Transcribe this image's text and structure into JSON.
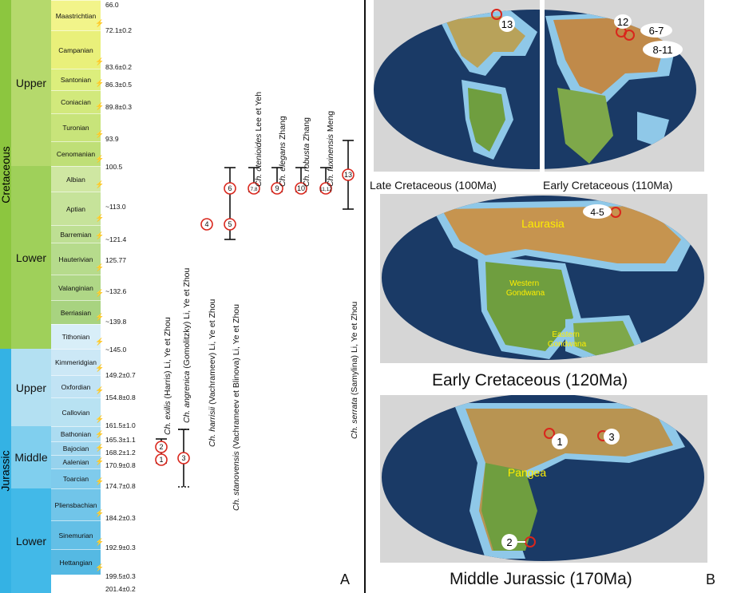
{
  "periods": [
    {
      "name": "Cretaceous",
      "color": "#8cc63f"
    },
    {
      "name": "Jurassic",
      "color": "#34b2e4"
    }
  ],
  "epochs": [
    {
      "name": "Upper",
      "color": "#b5d96c"
    },
    {
      "name": "Lower",
      "color": "#9fd05a"
    },
    {
      "name": "Upper",
      "color": "#b3e0f2"
    },
    {
      "name": "Middle",
      "color": "#80cfee"
    },
    {
      "name": "Lower",
      "color": "#42b9e8"
    }
  ],
  "stages": [
    {
      "name": "Maastrichtian",
      "color": "#f2f48a"
    },
    {
      "name": "Campanian",
      "color": "#e9f07a"
    },
    {
      "name": "Santonian",
      "color": "#dcee7c"
    },
    {
      "name": "Coniacian",
      "color": "#d2e97c"
    },
    {
      "name": "Turonian",
      "color": "#c8e47a"
    },
    {
      "name": "Cenomanian",
      "color": "#bfdf77"
    },
    {
      "name": "Albian",
      "color": "#cfe7a2"
    },
    {
      "name": "Aptian",
      "color": "#c6e39a"
    },
    {
      "name": "Barremian",
      "color": "#bedf93"
    },
    {
      "name": "Hauterivian",
      "color": "#b6db8c"
    },
    {
      "name": "Valanginian",
      "color": "#afd786"
    },
    {
      "name": "Berriasian",
      "color": "#a8d380"
    },
    {
      "name": "Tithonian",
      "color": "#d8eef8"
    },
    {
      "name": "Kimmeridgian",
      "color": "#cce8f6"
    },
    {
      "name": "Oxfordian",
      "color": "#c1e3f4"
    },
    {
      "name": "Callovian",
      "color": "#b8e2f2"
    },
    {
      "name": "Bathonian",
      "color": "#acdcf1"
    },
    {
      "name": "Bajocian",
      "color": "#a1d7ef"
    },
    {
      "name": "Aalenian",
      "color": "#96d2ed"
    },
    {
      "name": "Toarcian",
      "color": "#7fcbec"
    },
    {
      "name": "Pliensbachian",
      "color": "#71c5e9"
    },
    {
      "name": "Sinemurian",
      "color": "#63bfe6"
    },
    {
      "name": "Hettangian",
      "color": "#55b9e3"
    }
  ],
  "ages": [
    "66.0",
    "72.1±0.2",
    "83.6±0.2",
    "86.3±0.5",
    "89.8±0.3",
    "93.9",
    "100.5",
    "~113.0",
    "~121.4",
    "125.77",
    "~132.6",
    "~139.8",
    "~145.0",
    "149.2±0.7",
    "154.8±0.8",
    "161.5±1.0",
    "165.3±1.1",
    "168.2±1.2",
    "170.9±0.8",
    "174.7±0.8",
    "184.2±0.3",
    "192.9±0.3",
    "199.5±0.3",
    "201.4±0.2"
  ],
  "species": [
    {
      "italic": "Ch. exilis",
      "author": " (Harris) Li, Ye et Zhou"
    },
    {
      "italic": "Ch. angrenica",
      "author": " (Gomolitzky) Li, Ye et Zhou"
    },
    {
      "italic": "Ch. harrisii",
      "author": " (Vachrameev) Li, Ye et Zhou"
    },
    {
      "italic": "Ch. stanovensis",
      "author": " (Vachrameev et Blinova) Li, Ye et Zhou"
    },
    {
      "italic": "Ch. ctenioides",
      "author": " Lee et Yeh"
    },
    {
      "italic": "Ch. elegans",
      "author": " Zhang"
    },
    {
      "italic": "Ch. robusta",
      "author": " Zhang"
    },
    {
      "italic": "Ch. fuxinensis",
      "author": " Meng"
    },
    {
      "italic": "Ch. serrata",
      "author": " (Samylina) Li, Ye et Zhou"
    }
  ],
  "markers": [
    "1",
    "2",
    "3",
    "4",
    "5",
    "6",
    "7,8",
    "9",
    "10",
    "11,12",
    "13"
  ],
  "panel_a": "A",
  "panel_b": "B",
  "maps": {
    "late_cretaceous": "Late Cretaceous (100Ma)",
    "early_cretaceous_110": "Early Cretaceous (110Ma)",
    "early_cretaceous_120": "Early Cretaceous (120Ma)",
    "middle_jurassic": "Middle Jurassic (170Ma)",
    "laurasia": "Laurasia",
    "western_gondwana": "Western Gondwana",
    "eastern_gondwana": "Eastern Gondwana",
    "pangea": "Pangea",
    "loc_13": "13",
    "loc_12": "12",
    "loc_6_7": "6-7",
    "loc_8_11": "8-11",
    "loc_4_5": "4-5",
    "loc_1": "1",
    "loc_3": "3",
    "loc_2": "2"
  },
  "colors": {
    "ocean": "#1a3a66",
    "land": "#c98a4a",
    "shelf": "#8fc8e8",
    "marker": "#d9261c",
    "label_yellow": "#ffee00"
  }
}
